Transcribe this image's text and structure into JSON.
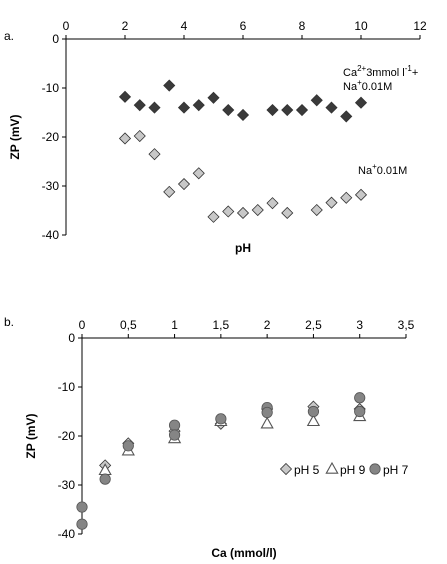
{
  "chart_data": [
    {
      "panel_label": "a.",
      "type": "scatter",
      "xlabel": "pH",
      "ylabel": "ZP (mV)",
      "xlim": [
        0,
        12
      ],
      "ylim": [
        -40,
        0
      ],
      "xticks": [
        "0",
        "2",
        "4",
        "6",
        "8",
        "10",
        "12"
      ],
      "yticks": [
        "0",
        "-10",
        "-20",
        "-30",
        "-40"
      ],
      "x_axis_position": "top",
      "grid": false,
      "series": [
        {
          "marker": "diamond",
          "color": "#3a3a3a",
          "points": [
            [
              2.0,
              -11.8
            ],
            [
              2.5,
              -13.5
            ],
            [
              3.0,
              -14.0
            ],
            [
              3.5,
              -9.5
            ],
            [
              4.0,
              -14.0
            ],
            [
              4.5,
              -13.5
            ],
            [
              5.0,
              -12.0
            ],
            [
              5.5,
              -14.5
            ],
            [
              6.0,
              -15.5
            ],
            [
              7.0,
              -14.5
            ],
            [
              7.5,
              -14.5
            ],
            [
              8.0,
              -14.5
            ],
            [
              8.5,
              -12.5
            ],
            [
              9.0,
              -14.0
            ],
            [
              9.5,
              -15.8
            ],
            [
              10.0,
              -13.0
            ]
          ]
        },
        {
          "marker": "diamond",
          "color": "#c8c8c8",
          "points": [
            [
              2.0,
              -20.3
            ],
            [
              2.5,
              -19.8
            ],
            [
              3.0,
              -23.5
            ],
            [
              3.5,
              -31.2
            ],
            [
              4.0,
              -29.6
            ],
            [
              4.5,
              -27.4
            ],
            [
              5.0,
              -36.3
            ],
            [
              5.5,
              -35.2
            ],
            [
              6.0,
              -35.5
            ],
            [
              6.5,
              -34.9
            ],
            [
              7.0,
              -33.5
            ],
            [
              7.5,
              -35.5
            ],
            [
              8.5,
              -34.9
            ],
            [
              9.0,
              -33.4
            ],
            [
              9.5,
              -32.4
            ],
            [
              10.0,
              -31.8
            ]
          ]
        }
      ],
      "annotations": {
        "upper": {
          "ca_text": "Ca",
          "ca_sup": "2+",
          "mid_text": "3mmol l",
          "mid_sup": "-1",
          "plus_text": "+",
          "na_text": "Na",
          "na_sup": "+",
          "na_rest": "0.01M"
        },
        "lower": {
          "na_text": "Na",
          "na_sup": "+",
          "na_rest": "0.01M"
        }
      }
    },
    {
      "panel_label": "b.",
      "type": "scatter",
      "xlabel": "Ca (mmol/l)",
      "ylabel": "ZP (mV)",
      "xlim": [
        0,
        3.5
      ],
      "ylim": [
        -40,
        0
      ],
      "xticks": [
        "0",
        "0,5",
        "1",
        "1,5",
        "2",
        "2,5",
        "3",
        "3,5"
      ],
      "yticks": [
        "0",
        "-10",
        "-20",
        "-30",
        "-40"
      ],
      "x_axis_position": "top",
      "grid": false,
      "legend_position": "inside-right",
      "series": [
        {
          "name": "pH 5",
          "marker": "diamond",
          "color": "#c8c8c8",
          "points": [
            [
              0.25,
              -26.0
            ],
            [
              0.5,
              -21.5
            ],
            [
              1.0,
              -19.0
            ],
            [
              1.5,
              -17.5
            ],
            [
              2.0,
              -14.5
            ],
            [
              2.5,
              -14.0
            ],
            [
              3.0,
              -14.5
            ]
          ]
        },
        {
          "name": "pH 9",
          "marker": "triangle",
          "color": "#ffffff",
          "points": [
            [
              0.25,
              -27.0
            ],
            [
              0.5,
              -23.0
            ],
            [
              1.0,
              -20.5
            ],
            [
              1.5,
              -17.0
            ],
            [
              2.0,
              -17.5
            ],
            [
              2.5,
              -17.0
            ],
            [
              3.0,
              -16.0
            ]
          ]
        },
        {
          "name": "pH 7",
          "marker": "circle",
          "color": "#858585",
          "points": [
            [
              0.0,
              -38.0
            ],
            [
              0.0,
              -34.5
            ],
            [
              0.25,
              -28.8
            ],
            [
              0.5,
              -22.0
            ],
            [
              1.0,
              -17.8
            ],
            [
              1.0,
              -19.8
            ],
            [
              1.5,
              -16.5
            ],
            [
              2.0,
              -14.2
            ],
            [
              2.0,
              -15.2
            ],
            [
              2.5,
              -15.0
            ],
            [
              3.0,
              -12.2
            ],
            [
              3.0,
              -15.0
            ]
          ]
        }
      ]
    }
  ]
}
